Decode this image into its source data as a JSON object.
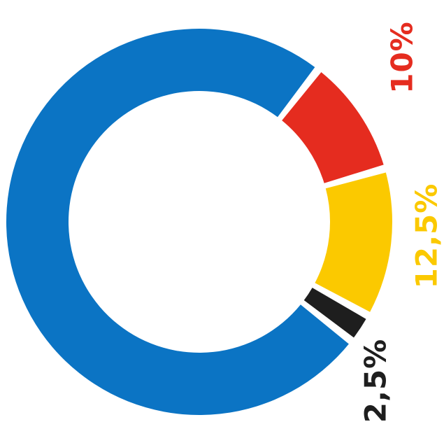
{
  "chart_data": {
    "type": "pie",
    "donut": true,
    "slices": [
      {
        "label": "10%",
        "value": 10,
        "color": "#e52c1f"
      },
      {
        "label": "12,5%",
        "value": 12.5,
        "color": "#fbc900"
      },
      {
        "label": "2,5%",
        "value": 2.5,
        "color": "#1e1e1e"
      },
      {
        "label": "",
        "value": 75,
        "color": "#0b74c4"
      }
    ]
  }
}
